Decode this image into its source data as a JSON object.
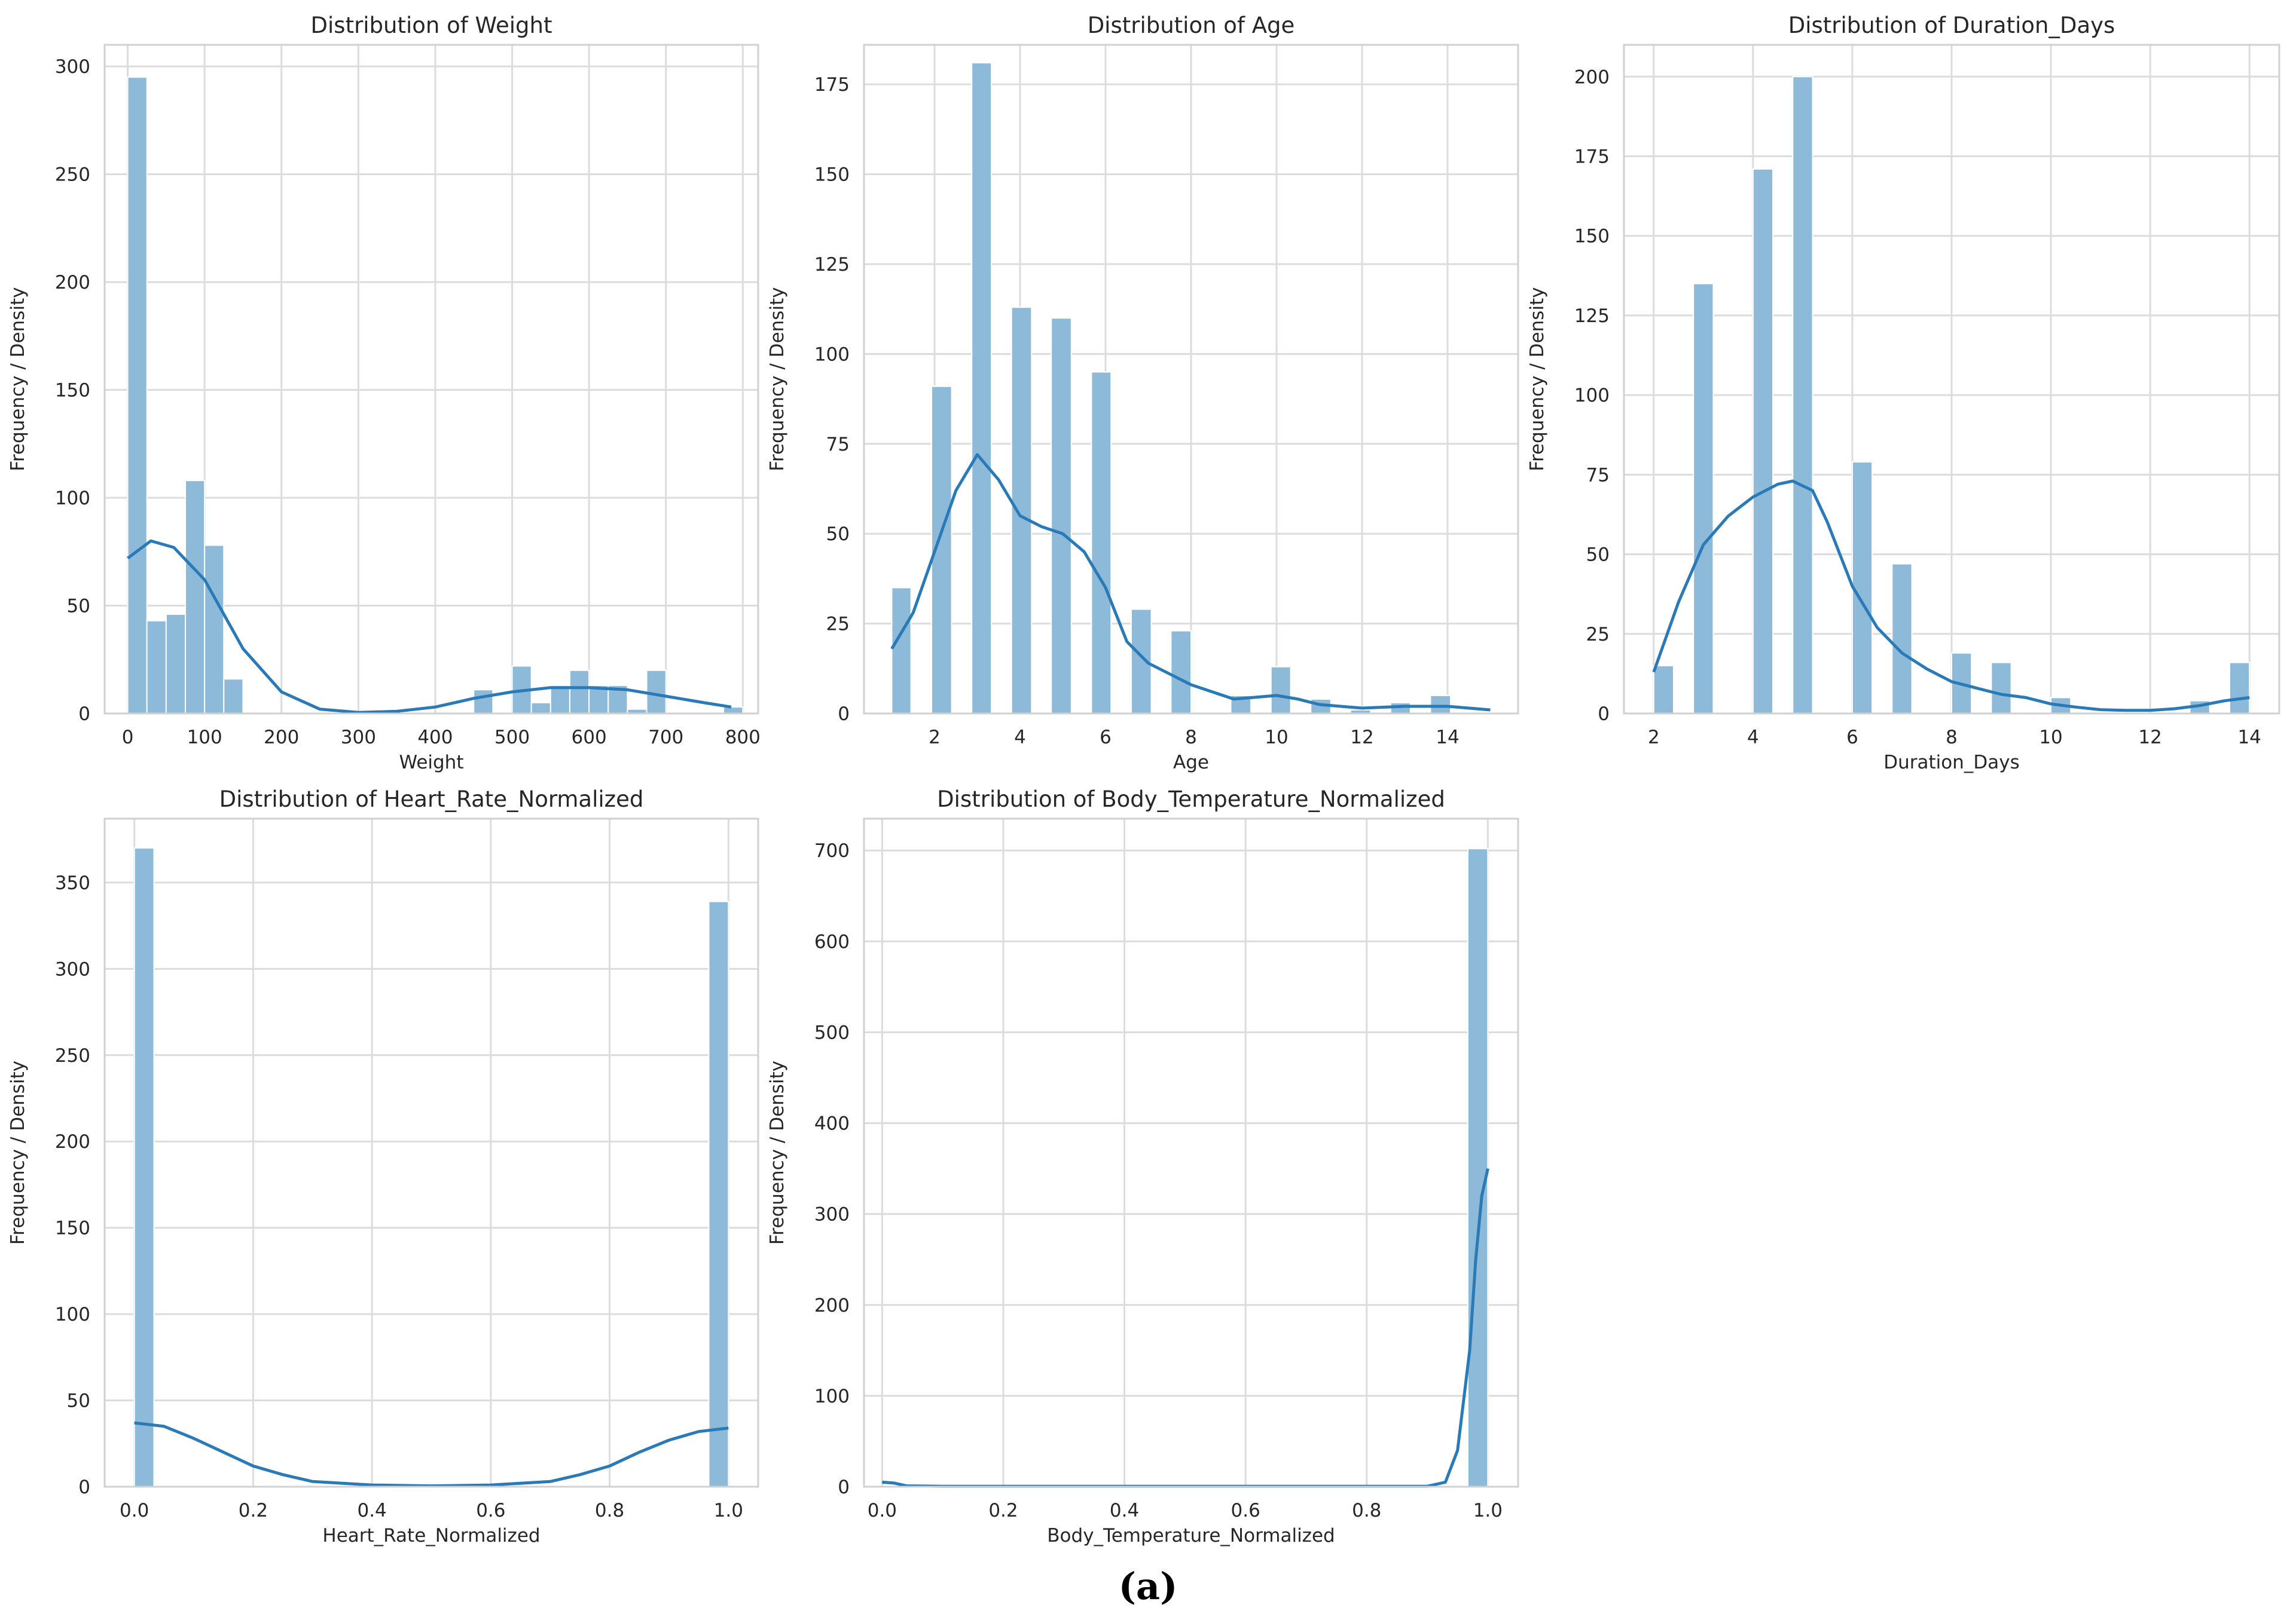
{
  "figure": {
    "caption": "(a)"
  },
  "chart_data": [
    {
      "type": "bar",
      "title": "Distribution of Weight",
      "xlabel": "Weight",
      "ylabel": "Frequency / Density",
      "xlim": [
        -30,
        820
      ],
      "ylim": [
        0,
        310
      ],
      "xticks": [
        0,
        100,
        200,
        300,
        400,
        500,
        600,
        700,
        800
      ],
      "yticks": [
        0,
        50,
        100,
        150,
        200,
        250,
        300
      ],
      "grid": true,
      "bar_color": "#8ebad9",
      "kde_color": "#2a7ab8",
      "bins": [
        {
          "x0": 0,
          "x1": 25,
          "count": 295
        },
        {
          "x0": 25,
          "x1": 50,
          "count": 43
        },
        {
          "x0": 50,
          "x1": 75,
          "count": 46
        },
        {
          "x0": 75,
          "x1": 100,
          "count": 108
        },
        {
          "x0": 100,
          "x1": 125,
          "count": 78
        },
        {
          "x0": 125,
          "x1": 150,
          "count": 16
        },
        {
          "x0": 450,
          "x1": 475,
          "count": 11
        },
        {
          "x0": 500,
          "x1": 525,
          "count": 22
        },
        {
          "x0": 525,
          "x1": 550,
          "count": 5
        },
        {
          "x0": 550,
          "x1": 575,
          "count": 13
        },
        {
          "x0": 575,
          "x1": 600,
          "count": 20
        },
        {
          "x0": 600,
          "x1": 625,
          "count": 13
        },
        {
          "x0": 625,
          "x1": 650,
          "count": 13
        },
        {
          "x0": 650,
          "x1": 675,
          "count": 2
        },
        {
          "x0": 675,
          "x1": 700,
          "count": 20
        },
        {
          "x0": 775,
          "x1": 800,
          "count": 3
        }
      ],
      "kde": [
        [
          0,
          72
        ],
        [
          30,
          80
        ],
        [
          60,
          77
        ],
        [
          100,
          62
        ],
        [
          150,
          30
        ],
        [
          200,
          10
        ],
        [
          250,
          2
        ],
        [
          300,
          0.5
        ],
        [
          350,
          1
        ],
        [
          400,
          3
        ],
        [
          450,
          7
        ],
        [
          500,
          10
        ],
        [
          550,
          12
        ],
        [
          600,
          12
        ],
        [
          650,
          11
        ],
        [
          700,
          8
        ],
        [
          750,
          5
        ],
        [
          785,
          3
        ]
      ]
    },
    {
      "type": "bar",
      "title": "Distribution of Age",
      "xlabel": "Age",
      "ylabel": "Frequency / Density",
      "xlim": [
        0.35,
        15.65
      ],
      "ylim": [
        0,
        186
      ],
      "xticks": [
        2,
        4,
        6,
        8,
        10,
        12,
        14
      ],
      "yticks": [
        0,
        25,
        50,
        75,
        100,
        125,
        150,
        175
      ],
      "grid": true,
      "bar_color": "#8ebad9",
      "kde_color": "#2a7ab8",
      "bins": [
        {
          "x0": 1.0,
          "x1": 1.45,
          "count": 35
        },
        {
          "x0": 1.93,
          "x1": 2.4,
          "count": 91
        },
        {
          "x0": 2.87,
          "x1": 3.33,
          "count": 181
        },
        {
          "x0": 3.8,
          "x1": 4.27,
          "count": 113
        },
        {
          "x0": 4.73,
          "x1": 5.2,
          "count": 110
        },
        {
          "x0": 5.67,
          "x1": 6.13,
          "count": 95
        },
        {
          "x0": 6.6,
          "x1": 7.07,
          "count": 29
        },
        {
          "x0": 7.53,
          "x1": 8.0,
          "count": 23
        },
        {
          "x0": 8.93,
          "x1": 9.4,
          "count": 5
        },
        {
          "x0": 9.87,
          "x1": 10.33,
          "count": 13
        },
        {
          "x0": 10.8,
          "x1": 11.27,
          "count": 4
        },
        {
          "x0": 11.73,
          "x1": 12.2,
          "count": 1
        },
        {
          "x0": 12.67,
          "x1": 13.13,
          "count": 3
        },
        {
          "x0": 13.6,
          "x1": 14.07,
          "count": 5
        }
      ],
      "kde": [
        [
          1,
          18
        ],
        [
          1.5,
          28
        ],
        [
          2,
          45
        ],
        [
          2.5,
          62
        ],
        [
          3,
          72
        ],
        [
          3.5,
          65
        ],
        [
          4,
          55
        ],
        [
          4.5,
          52
        ],
        [
          5,
          50
        ],
        [
          5.5,
          45
        ],
        [
          6,
          35
        ],
        [
          6.5,
          20
        ],
        [
          7,
          14
        ],
        [
          7.5,
          11
        ],
        [
          8,
          8
        ],
        [
          8.5,
          6
        ],
        [
          9,
          4
        ],
        [
          9.5,
          4.5
        ],
        [
          10,
          5
        ],
        [
          10.5,
          4
        ],
        [
          11,
          2.5
        ],
        [
          12,
          1.5
        ],
        [
          13,
          2
        ],
        [
          14,
          2
        ],
        [
          15,
          1
        ]
      ]
    },
    {
      "type": "bar",
      "title": "Distribution of Duration_Days",
      "xlabel": "Duration_Days",
      "ylabel": "Frequency / Density",
      "xlim": [
        1.4,
        14.6
      ],
      "ylim": [
        0,
        210
      ],
      "xticks": [
        2,
        4,
        6,
        8,
        10,
        12,
        14
      ],
      "yticks": [
        0,
        25,
        50,
        75,
        100,
        125,
        150,
        175,
        200
      ],
      "grid": true,
      "bar_color": "#8ebad9",
      "kde_color": "#2a7ab8",
      "bins": [
        {
          "x0": 2.0,
          "x1": 2.4,
          "count": 15
        },
        {
          "x0": 2.8,
          "x1": 3.2,
          "count": 135
        },
        {
          "x0": 4.0,
          "x1": 4.4,
          "count": 171
        },
        {
          "x0": 4.8,
          "x1": 5.2,
          "count": 200
        },
        {
          "x0": 6.0,
          "x1": 6.4,
          "count": 79
        },
        {
          "x0": 6.8,
          "x1": 7.2,
          "count": 47
        },
        {
          "x0": 8.0,
          "x1": 8.4,
          "count": 19
        },
        {
          "x0": 8.8,
          "x1": 9.2,
          "count": 16
        },
        {
          "x0": 10.0,
          "x1": 10.4,
          "count": 5
        },
        {
          "x0": 12.8,
          "x1": 13.2,
          "count": 4
        },
        {
          "x0": 13.6,
          "x1": 14.0,
          "count": 16
        }
      ],
      "kde": [
        [
          2,
          13
        ],
        [
          2.5,
          35
        ],
        [
          3,
          53
        ],
        [
          3.5,
          62
        ],
        [
          4,
          68
        ],
        [
          4.5,
          72
        ],
        [
          4.8,
          73
        ],
        [
          5.2,
          70
        ],
        [
          5.5,
          60
        ],
        [
          6,
          40
        ],
        [
          6.5,
          27
        ],
        [
          7,
          19
        ],
        [
          7.5,
          14
        ],
        [
          8,
          10
        ],
        [
          8.5,
          8
        ],
        [
          9,
          6
        ],
        [
          9.5,
          5
        ],
        [
          10,
          3
        ],
        [
          10.5,
          2
        ],
        [
          11,
          1.2
        ],
        [
          11.5,
          1
        ],
        [
          12,
          1
        ],
        [
          12.5,
          1.5
        ],
        [
          13,
          2.5
        ],
        [
          13.5,
          4
        ],
        [
          14,
          5
        ]
      ]
    },
    {
      "type": "bar",
      "title": "Distribution of Heart_Rate_Normalized",
      "xlabel": "Heart_Rate_Normalized",
      "ylabel": "Frequency / Density",
      "xlim": [
        -0.05,
        1.05
      ],
      "ylim": [
        0,
        387
      ],
      "xticks": [
        0.0,
        0.2,
        0.4,
        0.6,
        0.8,
        1.0
      ],
      "yticks": [
        0,
        50,
        100,
        150,
        200,
        250,
        300,
        350
      ],
      "grid": true,
      "bar_color": "#8ebad9",
      "kde_color": "#2a7ab8",
      "bins": [
        {
          "x0": 0.0,
          "x1": 0.033,
          "count": 370
        },
        {
          "x0": 0.967,
          "x1": 1.0,
          "count": 339
        }
      ],
      "kde": [
        [
          0,
          37
        ],
        [
          0.05,
          35
        ],
        [
          0.1,
          28
        ],
        [
          0.15,
          20
        ],
        [
          0.2,
          12
        ],
        [
          0.25,
          7
        ],
        [
          0.3,
          3
        ],
        [
          0.4,
          1
        ],
        [
          0.5,
          0.5
        ],
        [
          0.6,
          1
        ],
        [
          0.7,
          3
        ],
        [
          0.75,
          7
        ],
        [
          0.8,
          12
        ],
        [
          0.85,
          20
        ],
        [
          0.9,
          27
        ],
        [
          0.95,
          32
        ],
        [
          1,
          34
        ]
      ]
    },
    {
      "type": "bar",
      "title": "Distribution of Body_Temperature_Normalized",
      "xlabel": "Body_Temperature_Normalized",
      "ylabel": "Frequency / Density",
      "xlim": [
        -0.03,
        1.05
      ],
      "ylim": [
        0,
        735
      ],
      "xticks": [
        0.0,
        0.2,
        0.4,
        0.6,
        0.8,
        1.0
      ],
      "yticks": [
        0,
        100,
        200,
        300,
        400,
        500,
        600,
        700
      ],
      "grid": true,
      "bar_color": "#8ebad9",
      "kde_color": "#2a7ab8",
      "bins": [
        {
          "x0": 0.967,
          "x1": 1.0,
          "count": 702
        }
      ],
      "kde": [
        [
          0,
          5
        ],
        [
          0.02,
          4
        ],
        [
          0.04,
          1
        ],
        [
          0.1,
          0.5
        ],
        [
          0.5,
          0.5
        ],
        [
          0.9,
          0.5
        ],
        [
          0.93,
          5
        ],
        [
          0.95,
          40
        ],
        [
          0.97,
          150
        ],
        [
          0.98,
          250
        ],
        [
          0.99,
          320
        ],
        [
          1,
          350
        ]
      ]
    }
  ]
}
